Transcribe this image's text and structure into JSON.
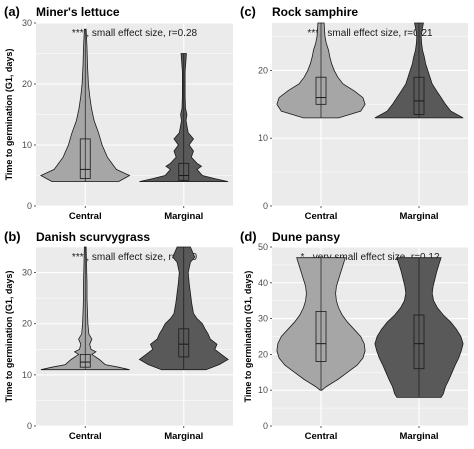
{
  "chart_data": [
    {
      "type": "violin",
      "tag": "(a)",
      "title": "Miner's lettuce",
      "annotation": "*** , small effect size, r=0.28",
      "ylabel": "Time to germination (G1, days)",
      "xlabel": "",
      "ylim": [
        0,
        30
      ],
      "yticks": [
        0,
        10,
        20,
        30
      ],
      "grid": true,
      "categories": [
        "Central",
        "Marginal"
      ],
      "groups": [
        {
          "name": "Central",
          "color": "#a6a6a6",
          "box": {
            "q1": 4.5,
            "median": 6,
            "q3": 11
          },
          "density": [
            [
              4,
              0.75
            ],
            [
              5,
              1.0
            ],
            [
              6,
              0.7
            ],
            [
              8,
              0.5
            ],
            [
              10,
              0.38
            ],
            [
              12,
              0.3
            ],
            [
              14,
              0.2
            ],
            [
              16,
              0.14
            ],
            [
              18,
              0.1
            ],
            [
              20,
              0.07
            ],
            [
              23,
              0.05
            ],
            [
              26,
              0.04
            ],
            [
              29,
              0.02
            ]
          ]
        },
        {
          "name": "Marginal",
          "color": "#595959",
          "box": {
            "q1": 4.2,
            "median": 5,
            "q3": 7
          },
          "density": [
            [
              4,
              1.0
            ],
            [
              4.5,
              0.7
            ],
            [
              5,
              0.42
            ],
            [
              6,
              0.3
            ],
            [
              6.5,
              0.4
            ],
            [
              7,
              0.3
            ],
            [
              8,
              0.17
            ],
            [
              9,
              0.22
            ],
            [
              10,
              0.12
            ],
            [
              11,
              0.22
            ],
            [
              12,
              0.1
            ],
            [
              14,
              0.05
            ],
            [
              15,
              0.07
            ],
            [
              16,
              0.04
            ],
            [
              18,
              0.03
            ],
            [
              22,
              0.03
            ],
            [
              24,
              0.05
            ],
            [
              25,
              0.06
            ]
          ]
        }
      ]
    },
    {
      "type": "violin",
      "tag": "(c)",
      "title": "Rock samphire",
      "annotation": "*** , small effect size, r=0.21",
      "ylabel": "",
      "xlabel": "",
      "ylim": [
        0,
        27
      ],
      "yticks": [
        0,
        10,
        20
      ],
      "grid": true,
      "categories": [
        "Central",
        "Marginal"
      ],
      "groups": [
        {
          "name": "Central",
          "color": "#a6a6a6",
          "box": {
            "q1": 15,
            "median": 16,
            "q3": 19
          },
          "density": [
            [
              13,
              0.4
            ],
            [
              14,
              0.9
            ],
            [
              15,
              1.0
            ],
            [
              16,
              0.95
            ],
            [
              17,
              0.75
            ],
            [
              18,
              0.5
            ],
            [
              19,
              0.38
            ],
            [
              20,
              0.3
            ],
            [
              21,
              0.24
            ],
            [
              22,
              0.2
            ],
            [
              23,
              0.17
            ],
            [
              24,
              0.12
            ],
            [
              25,
              0.09
            ],
            [
              26,
              0.08
            ],
            [
              27,
              0.07
            ]
          ]
        },
        {
          "name": "Marginal",
          "color": "#595959",
          "box": {
            "q1": 13.5,
            "median": 15.5,
            "q3": 19
          },
          "density": [
            [
              13,
              1.0
            ],
            [
              14,
              0.72
            ],
            [
              15,
              0.6
            ],
            [
              16,
              0.5
            ],
            [
              17,
              0.4
            ],
            [
              18,
              0.3
            ],
            [
              19,
              0.25
            ],
            [
              20,
              0.2
            ],
            [
              21,
              0.15
            ],
            [
              22,
              0.12
            ],
            [
              23,
              0.08
            ],
            [
              24,
              0.06
            ],
            [
              25,
              0.05
            ],
            [
              26,
              0.07
            ],
            [
              27,
              0.1
            ]
          ]
        }
      ]
    },
    {
      "type": "violin",
      "tag": "(b)",
      "title": "Danish scurvygrass",
      "annotation": "*** , small effect size, r=0.30",
      "ylabel": "Time to germination (G1, days)",
      "xlabel": "",
      "ylim": [
        0,
        35
      ],
      "yticks": [
        0,
        10,
        20,
        30
      ],
      "grid": true,
      "categories": [
        "Central",
        "Marginal"
      ],
      "groups": [
        {
          "name": "Central",
          "color": "#a6a6a6",
          "box": {
            "q1": 11.5,
            "median": 12.5,
            "q3": 14
          },
          "density": [
            [
              11,
              1.0
            ],
            [
              11.5,
              0.75
            ],
            [
              12,
              0.45
            ],
            [
              13,
              0.32
            ],
            [
              14,
              0.15
            ],
            [
              14.5,
              0.24
            ],
            [
              15,
              0.13
            ],
            [
              16,
              0.1
            ],
            [
              17,
              0.15
            ],
            [
              18,
              0.08
            ],
            [
              20,
              0.06
            ],
            [
              22,
              0.05
            ],
            [
              25,
              0.04
            ],
            [
              28,
              0.04
            ],
            [
              31,
              0.03
            ],
            [
              35,
              0.02
            ]
          ]
        },
        {
          "name": "Marginal",
          "color": "#595959",
          "box": {
            "q1": 13.5,
            "median": 16,
            "q3": 19
          },
          "density": [
            [
              11,
              0.5
            ],
            [
              12,
              0.8
            ],
            [
              13,
              1.0
            ],
            [
              14,
              0.85
            ],
            [
              15,
              0.7
            ],
            [
              16,
              0.75
            ],
            [
              17,
              0.6
            ],
            [
              18,
              0.55
            ],
            [
              19,
              0.48
            ],
            [
              20,
              0.42
            ],
            [
              21,
              0.3
            ],
            [
              22,
              0.22
            ],
            [
              24,
              0.18
            ],
            [
              26,
              0.15
            ],
            [
              28,
              0.12
            ],
            [
              30,
              0.1
            ],
            [
              32,
              0.15
            ],
            [
              33,
              0.25
            ],
            [
              34,
              0.2
            ],
            [
              35,
              0.15
            ]
          ]
        }
      ]
    },
    {
      "type": "violin",
      "tag": "(d)",
      "title": "Dune pansy",
      "annotation": "* , very small effect size, r=0.12",
      "ylabel": "Time to germination (G1, days)",
      "xlabel": "",
      "ylim": [
        0,
        50
      ],
      "yticks": [
        0,
        10,
        20,
        30,
        40,
        50
      ],
      "grid": true,
      "categories": [
        "Central",
        "Marginal"
      ],
      "groups": [
        {
          "name": "Central",
          "color": "#a6a6a6",
          "box": {
            "q1": 18,
            "median": 23,
            "q3": 32
          },
          "density": [
            [
              10,
              0.02
            ],
            [
              11,
              0.12
            ],
            [
              13,
              0.38
            ],
            [
              15,
              0.6
            ],
            [
              17,
              0.82
            ],
            [
              19,
              0.95
            ],
            [
              21,
              1.0
            ],
            [
              23,
              0.98
            ],
            [
              25,
              0.9
            ],
            [
              27,
              0.75
            ],
            [
              29,
              0.6
            ],
            [
              31,
              0.48
            ],
            [
              33,
              0.4
            ],
            [
              35,
              0.35
            ],
            [
              37,
              0.33
            ],
            [
              39,
              0.35
            ],
            [
              41,
              0.4
            ],
            [
              43,
              0.45
            ],
            [
              45,
              0.5
            ],
            [
              47,
              0.55
            ]
          ]
        },
        {
          "name": "Marginal",
          "color": "#595959",
          "box": {
            "q1": 16,
            "median": 23,
            "q3": 31
          },
          "density": [
            [
              8,
              0.5
            ],
            [
              9,
              0.55
            ],
            [
              11,
              0.6
            ],
            [
              13,
              0.68
            ],
            [
              15,
              0.75
            ],
            [
              17,
              0.82
            ],
            [
              19,
              0.9
            ],
            [
              21,
              0.96
            ],
            [
              23,
              1.0
            ],
            [
              25,
              0.95
            ],
            [
              27,
              0.85
            ],
            [
              29,
              0.72
            ],
            [
              31,
              0.55
            ],
            [
              33,
              0.42
            ],
            [
              35,
              0.33
            ],
            [
              37,
              0.3
            ],
            [
              39,
              0.32
            ],
            [
              41,
              0.36
            ],
            [
              43,
              0.4
            ],
            [
              45,
              0.45
            ],
            [
              47,
              0.5
            ]
          ]
        }
      ]
    }
  ]
}
